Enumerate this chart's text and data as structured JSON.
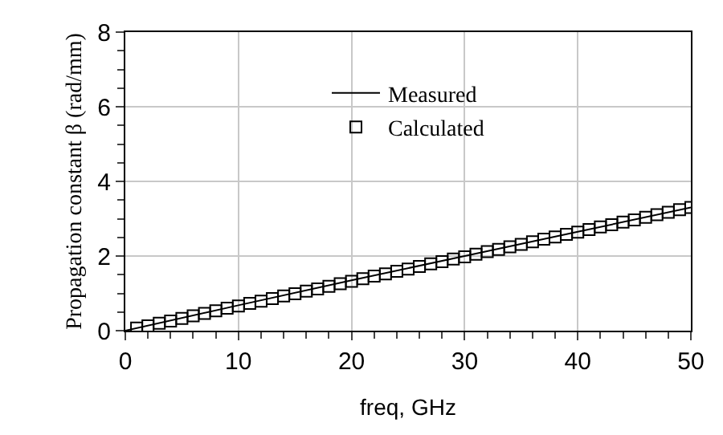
{
  "chart_data": {
    "type": "line",
    "xlabel": "freq, GHz",
    "ylabel": "Propagation constant β (rad/mm)",
    "xlim": [
      0,
      50
    ],
    "xticks": [
      0,
      10,
      20,
      30,
      40,
      50
    ],
    "ylim": [
      0,
      8
    ],
    "yticks": [
      0,
      2,
      4,
      6,
      8
    ],
    "grid": true,
    "legend": "top",
    "series": [
      {
        "name": "Measured",
        "marker": "none",
        "color": "#000000",
        "x": [
          0,
          10,
          20,
          30,
          40,
          50
        ],
        "values": [
          0,
          0.68,
          1.35,
          2.0,
          2.65,
          3.3
        ]
      },
      {
        "name": "Calculated",
        "type": "scatter",
        "marker": "square",
        "color": "#000000",
        "x": [
          1,
          2,
          3,
          4,
          5,
          6,
          7,
          8,
          9,
          10,
          11,
          12,
          13,
          14,
          15,
          16,
          17,
          18,
          19,
          20,
          21,
          22,
          23,
          24,
          25,
          26,
          27,
          28,
          29,
          30,
          31,
          32,
          33,
          34,
          35,
          36,
          37,
          38,
          39,
          40,
          41,
          42,
          43,
          44,
          45,
          46,
          47,
          48,
          49,
          50
        ],
        "values": [
          0.07,
          0.13,
          0.2,
          0.26,
          0.33,
          0.4,
          0.46,
          0.53,
          0.6,
          0.66,
          0.73,
          0.79,
          0.86,
          0.93,
          0.99,
          1.06,
          1.12,
          1.19,
          1.26,
          1.32,
          1.39,
          1.46,
          1.52,
          1.59,
          1.65,
          1.72,
          1.79,
          1.85,
          1.92,
          1.98,
          2.05,
          2.12,
          2.18,
          2.25,
          2.31,
          2.38,
          2.45,
          2.51,
          2.58,
          2.64,
          2.71,
          2.78,
          2.84,
          2.91,
          2.97,
          3.04,
          3.11,
          3.17,
          3.24,
          3.3
        ]
      }
    ]
  }
}
